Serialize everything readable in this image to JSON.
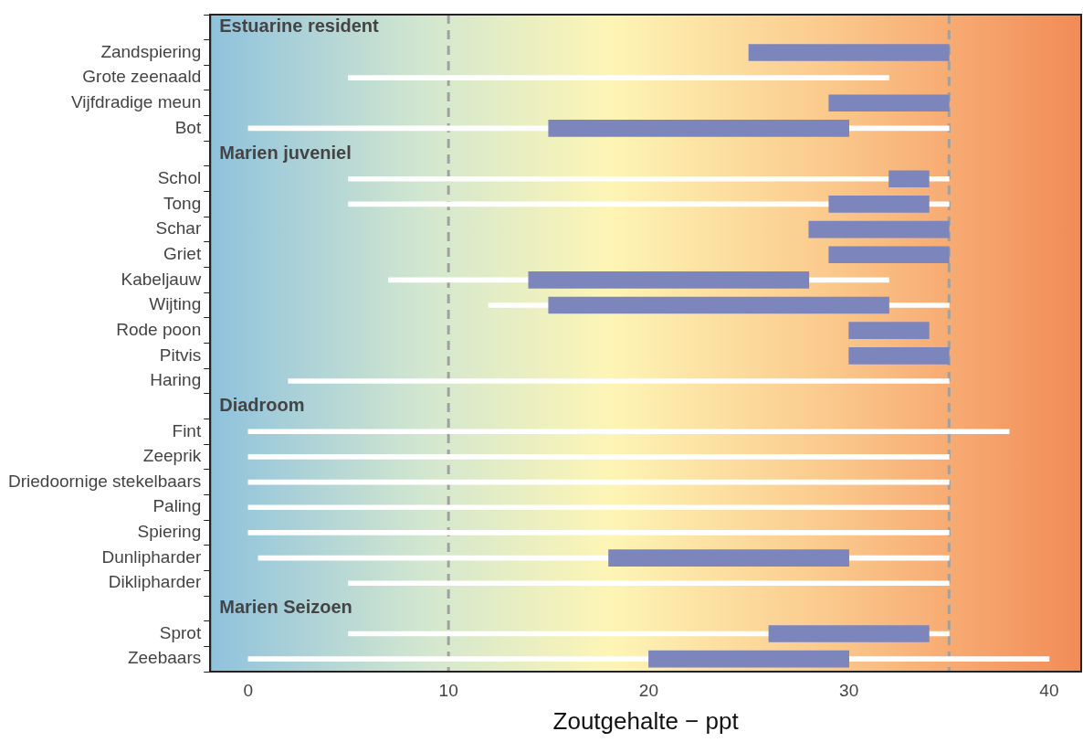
{
  "chart_data": {
    "type": "bar",
    "orientation": "horizontal",
    "xlabel": "Zoutgehalte − ppt",
    "categories": [
      null,
      "Zandspiering",
      "Grote zeenaald",
      "Vijfdradige meun",
      "Bot",
      null,
      "Schol",
      "Tong",
      "Schar",
      "Griet",
      "Kabeljauw",
      "Wijting",
      "Rode poon",
      "Pitvis",
      "Haring",
      null,
      "Fint",
      "Zeeprik",
      "Driedoornige stekelbaars",
      "Paling",
      "Spiering",
      "Dunlipharder",
      "Diklipharder",
      null,
      "Sprot",
      "Zeebaars"
    ],
    "series": [
      {
        "color": "#ffffff",
        "base": [
          null,
          null,
          5,
          null,
          0,
          null,
          5,
          5,
          null,
          null,
          7,
          12,
          null,
          null,
          2,
          null,
          0,
          0,
          0,
          0,
          0,
          0.5,
          5,
          null,
          5,
          0
        ],
        "values": [
          null,
          null,
          27,
          null,
          35,
          null,
          30,
          30,
          null,
          null,
          25,
          23,
          null,
          null,
          33,
          null,
          38,
          35,
          35,
          35,
          35,
          34.5,
          30,
          null,
          30,
          40
        ]
      },
      {
        "color": "#7d85bd",
        "base": [
          null,
          25,
          null,
          29,
          15,
          null,
          32,
          29,
          28,
          29,
          14,
          15,
          30,
          30,
          null,
          null,
          null,
          null,
          null,
          null,
          null,
          18,
          null,
          null,
          26,
          20
        ],
        "values": [
          null,
          10,
          null,
          6,
          15,
          null,
          2,
          5,
          7,
          6,
          14,
          17,
          4,
          5,
          null,
          null,
          null,
          null,
          null,
          null,
          null,
          12,
          null,
          null,
          8,
          10
        ]
      }
    ],
    "annotations": [
      "Estuarine resident",
      "Marien juveniel",
      "Diadroom",
      "Marien Seizoen"
    ],
    "xlim": [
      -1.9,
      41.6
    ],
    "xticks": [
      0,
      10,
      20,
      30,
      40
    ],
    "ref_lines": [
      {
        "axis": "x",
        "value": 10,
        "color": "#a0a0a0",
        "line_style": "dashed"
      },
      {
        "axis": "x",
        "value": 35,
        "color": "#a0a0a0",
        "line_style": "dashed"
      }
    ],
    "grid": false,
    "legend": false
  }
}
